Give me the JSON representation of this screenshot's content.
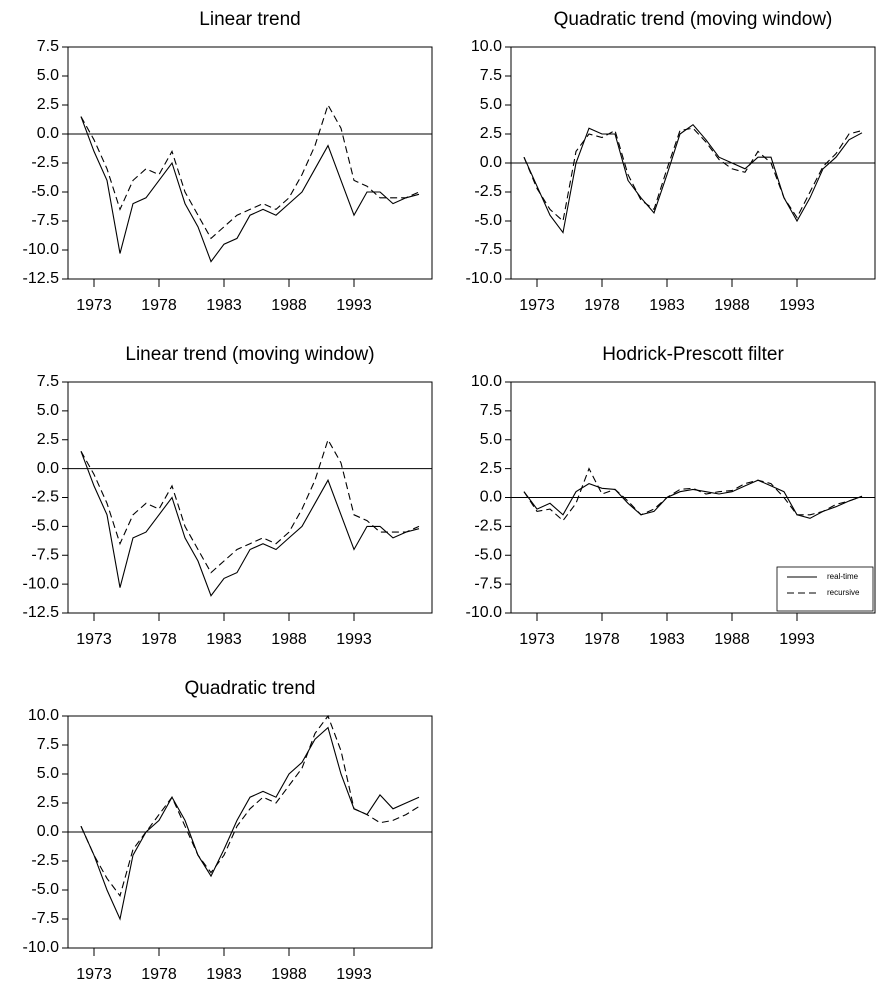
{
  "chart_data": [
    {
      "type": "line",
      "title": "Linear trend",
      "x": [
        1972,
        1973,
        1974,
        1975,
        1976,
        1977,
        1978,
        1979,
        1980,
        1981,
        1982,
        1983,
        1984,
        1985,
        1986,
        1987,
        1988,
        1989,
        1990,
        1991,
        1992,
        1993,
        1994,
        1995,
        1996,
        1997,
        1998
      ],
      "series": [
        {
          "color": "#000000",
          "dash": false,
          "values": [
            1.5,
            -1.5,
            -4,
            -10.3,
            -6,
            -5.5,
            -4,
            -2.5,
            -6,
            -8,
            -11,
            -9.5,
            -9,
            -7,
            -6.5,
            -7,
            -6,
            -5,
            -3,
            -1,
            -4,
            -7,
            -5,
            -5,
            -6,
            -5.5,
            -5.2
          ]
        },
        {
          "color": "#000000",
          "dash": true,
          "values": [
            1.5,
            -0.5,
            -3,
            -6.5,
            -4,
            -3,
            -3.5,
            -1.5,
            -5,
            -7,
            -9,
            -8,
            -7,
            -6.5,
            -6,
            -6.5,
            -5.5,
            -3.5,
            -1,
            2.5,
            0.5,
            -4,
            -4.5,
            -5.5,
            -5.5,
            -5.5,
            -5
          ]
        }
      ],
      "xlim": [
        1971,
        1999
      ],
      "xticks": [
        1973,
        1978,
        1983,
        1988,
        1993
      ],
      "ylim": [
        -12.5,
        7.5
      ],
      "yticks": [
        7.5,
        {
          "value": 5,
          "label": "5.0"
        },
        2.5,
        {
          "value": 0,
          "label": "0.0"
        },
        -2.5,
        {
          "value": -5,
          "label": "-5.0"
        },
        -7.5,
        {
          "value": -10,
          "label": "-10.0"
        },
        -12.5
      ],
      "hline": 0
    },
    {
      "type": "line",
      "title": "Quadratic trend (moving window)",
      "x": [
        1972,
        1973,
        1974,
        1975,
        1976,
        1977,
        1978,
        1979,
        1980,
        1981,
        1982,
        1983,
        1984,
        1985,
        1986,
        1987,
        1988,
        1989,
        1990,
        1991,
        1992,
        1993,
        1994,
        1995,
        1996,
        1997,
        1998
      ],
      "series": [
        {
          "color": "#000000",
          "dash": false,
          "values": [
            0.5,
            -2,
            -4.5,
            -6,
            0,
            3,
            2.5,
            2.5,
            -1.5,
            -3,
            -4.3,
            -1,
            2.5,
            3.3,
            2,
            0.5,
            0,
            -0.5,
            0.5,
            0.5,
            -3,
            -5,
            -3,
            -0.5,
            0.5,
            2,
            2.6
          ]
        },
        {
          "color": "#000000",
          "dash": true,
          "values": [
            0.5,
            -2.2,
            -4,
            -5,
            1,
            2.5,
            2.2,
            2.8,
            -1,
            -3.2,
            -4,
            -0.5,
            2.8,
            3,
            1.8,
            0.3,
            -0.5,
            -0.8,
            1,
            0,
            -3,
            -4.7,
            -2.5,
            -0.3,
            0.8,
            2.5,
            2.8
          ]
        }
      ],
      "xlim": [
        1971,
        1999
      ],
      "xticks": [
        1973,
        1978,
        1983,
        1988,
        1993
      ],
      "ylim": [
        -10,
        10
      ],
      "yticks": [
        {
          "value": 10,
          "label": "10.0"
        },
        7.5,
        {
          "value": 5,
          "label": "5.0"
        },
        2.5,
        {
          "value": 0,
          "label": "0.0"
        },
        -2.5,
        {
          "value": -5,
          "label": "-5.0"
        },
        -7.5,
        {
          "value": -10,
          "label": "-10.0"
        }
      ],
      "hline": 0
    },
    {
      "type": "line",
      "title": "Linear trend (moving window)",
      "x": [
        1972,
        1973,
        1974,
        1975,
        1976,
        1977,
        1978,
        1979,
        1980,
        1981,
        1982,
        1983,
        1984,
        1985,
        1986,
        1987,
        1988,
        1989,
        1990,
        1991,
        1992,
        1993,
        1994,
        1995,
        1996,
        1997,
        1998
      ],
      "series": [
        {
          "color": "#000000",
          "dash": false,
          "values": [
            1.5,
            -1.5,
            -4,
            -10.3,
            -6,
            -5.5,
            -4,
            -2.5,
            -6,
            -8,
            -11,
            -9.5,
            -9,
            -7,
            -6.5,
            -7,
            -6,
            -5,
            -3,
            -1,
            -4,
            -7,
            -5,
            -5,
            -6,
            -5.5,
            -5.2
          ]
        },
        {
          "color": "#000000",
          "dash": true,
          "values": [
            1.5,
            -0.5,
            -3,
            -6.5,
            -4,
            -3,
            -3.5,
            -1.5,
            -5,
            -7,
            -9,
            -8,
            -7,
            -6.5,
            -6,
            -6.5,
            -5.5,
            -3.5,
            -1,
            2.5,
            0.5,
            -4,
            -4.5,
            -5.5,
            -5.5,
            -5.5,
            -5
          ]
        }
      ],
      "xlim": [
        1971,
        1999
      ],
      "xticks": [
        1973,
        1978,
        1983,
        1988,
        1993
      ],
      "ylim": [
        -12.5,
        7.5
      ],
      "yticks": [
        7.5,
        {
          "value": 5,
          "label": "5.0"
        },
        2.5,
        {
          "value": 0,
          "label": "0.0"
        },
        -2.5,
        {
          "value": -5,
          "label": "-5.0"
        },
        -7.5,
        {
          "value": -10,
          "label": "-10.0"
        },
        -12.5
      ],
      "hline": 0
    },
    {
      "type": "line",
      "title": "Hodrick-Prescott filter",
      "x": [
        1972,
        1973,
        1974,
        1975,
        1976,
        1977,
        1978,
        1979,
        1980,
        1981,
        1982,
        1983,
        1984,
        1985,
        1986,
        1987,
        1988,
        1989,
        1990,
        1991,
        1992,
        1993,
        1994,
        1995,
        1996,
        1997,
        1998
      ],
      "series": [
        {
          "name": "real-time",
          "color": "#000000",
          "dash": false,
          "values": [
            0.5,
            -1,
            -0.5,
            -1.5,
            0.5,
            1.2,
            0.8,
            0.7,
            -0.5,
            -1.5,
            -1.2,
            0,
            0.5,
            0.7,
            0.5,
            0.3,
            0.5,
            1,
            1.5,
            1,
            0.5,
            -1.5,
            -1.8,
            -1.2,
            -0.8,
            -0.3,
            0.1
          ]
        },
        {
          "name": "recursive",
          "color": "#000000",
          "dash": true,
          "values": [
            0.5,
            -1.2,
            -1,
            -2,
            -0.5,
            2.5,
            0.3,
            0.7,
            -0.3,
            -1.5,
            -1,
            0,
            0.7,
            0.8,
            0.3,
            0.5,
            0.6,
            1.2,
            1.5,
            1.2,
            0,
            -1.5,
            -1.5,
            -1.2,
            -0.6,
            -0.3,
            0.1
          ]
        }
      ],
      "xlim": [
        1971,
        1999
      ],
      "xticks": [
        1973,
        1978,
        1983,
        1988,
        1993
      ],
      "ylim": [
        -10,
        10
      ],
      "yticks": [
        {
          "value": 10,
          "label": "10.0"
        },
        7.5,
        {
          "value": 5,
          "label": "5.0"
        },
        2.5,
        {
          "value": 0,
          "label": "0.0"
        },
        -2.5,
        {
          "value": -5,
          "label": "-5.0"
        },
        -7.5,
        {
          "value": -10,
          "label": "-10.0"
        }
      ],
      "hline": 0,
      "legend": "lower right"
    },
    {
      "type": "line",
      "title": "Quadratic trend",
      "x": [
        1972,
        1973,
        1974,
        1975,
        1976,
        1977,
        1978,
        1979,
        1980,
        1981,
        1982,
        1983,
        1984,
        1985,
        1986,
        1987,
        1988,
        1989,
        1990,
        1991,
        1992,
        1993,
        1994,
        1995,
        1996,
        1997,
        1998
      ],
      "series": [
        {
          "color": "#000000",
          "dash": false,
          "values": [
            0.5,
            -2,
            -5,
            -7.5,
            -2,
            0,
            1,
            3,
            1,
            -2,
            -3.8,
            -1.5,
            1,
            3,
            3.5,
            3,
            5,
            6,
            8,
            9,
            5,
            2,
            1.5,
            3.2,
            2,
            2.5,
            3
          ]
        },
        {
          "color": "#000000",
          "dash": true,
          "values": [
            0.5,
            -2,
            -4,
            -5.5,
            -1.5,
            0,
            1.5,
            3,
            0.5,
            -2,
            -3.5,
            -2,
            0.5,
            2,
            3,
            2.5,
            4,
            5.5,
            8.5,
            10,
            7,
            2,
            1.5,
            0.8,
            1,
            1.5,
            2.2
          ]
        }
      ],
      "xlim": [
        1971,
        1999
      ],
      "xticks": [
        1973,
        1978,
        1983,
        1988,
        1993
      ],
      "ylim": [
        -10,
        10
      ],
      "yticks": [
        {
          "value": 10,
          "label": "10.0"
        },
        7.5,
        {
          "value": 5,
          "label": "5.0"
        },
        2.5,
        {
          "value": 0,
          "label": "0.0"
        },
        -2.5,
        {
          "value": -5,
          "label": "-5.0"
        },
        -7.5,
        {
          "value": -10,
          "label": "-10.0"
        }
      ],
      "hline": 0
    }
  ]
}
